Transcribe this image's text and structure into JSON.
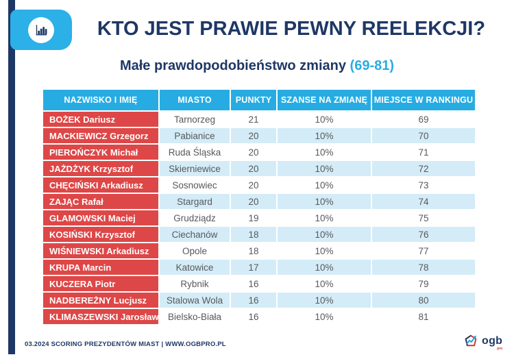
{
  "header": {
    "title": "KTO JEST PRAWIE PEWNY REELEKCJI?",
    "subtitle": "Małe prawdopodobieństwo zmiany",
    "subtitle_range": "(69-81)"
  },
  "table": {
    "columns": [
      "NAZWISKO I IMIĘ",
      "MIASTO",
      "PUNKTY",
      "SZANSE NA ZMIANĘ",
      "MIEJSCE W RANKINGU"
    ],
    "rows": [
      {
        "name": "BOŻEK Dariusz",
        "city": "Tarnorzeg",
        "points": "21",
        "chance": "10%",
        "rank": "69"
      },
      {
        "name": "MACKIEWICZ Grzegorz",
        "city": "Pabianice",
        "points": "20",
        "chance": "10%",
        "rank": "70"
      },
      {
        "name": "PIEROŃCZYK Michał",
        "city": "Ruda Śląska",
        "points": "20",
        "chance": "10%",
        "rank": "71"
      },
      {
        "name": "JAŻDŻYK Krzysztof",
        "city": "Skierniewice",
        "points": "20",
        "chance": "10%",
        "rank": "72"
      },
      {
        "name": "CHĘCIŃSKI Arkadiusz",
        "city": "Sosnowiec",
        "points": "20",
        "chance": "10%",
        "rank": "73"
      },
      {
        "name": "ZAJĄC Rafał",
        "city": "Stargard",
        "points": "20",
        "chance": "10%",
        "rank": "74"
      },
      {
        "name": "GLAMOWSKI Maciej",
        "city": "Grudziądz",
        "points": "19",
        "chance": "10%",
        "rank": "75"
      },
      {
        "name": "KOSIŃSKI Krzysztof",
        "city": "Ciechanów",
        "points": "18",
        "chance": "10%",
        "rank": "76"
      },
      {
        "name": "WIŚNIEWSKI Arkadiusz",
        "city": "Opole",
        "points": "18",
        "chance": "10%",
        "rank": "77"
      },
      {
        "name": "KRUPA Marcin",
        "city": "Katowice",
        "points": "17",
        "chance": "10%",
        "rank": "78"
      },
      {
        "name": "KUCZERA Piotr",
        "city": "Rybnik",
        "points": "16",
        "chance": "10%",
        "rank": "79"
      },
      {
        "name": "NADBEREŻNY Lucjusz",
        "city": "Stalowa Wola",
        "points": "16",
        "chance": "10%",
        "rank": "80"
      },
      {
        "name": "KLIMASZEWSKI Jarosław",
        "city": "Bielsko-Biała",
        "points": "16",
        "chance": "10%",
        "rank": "81"
      }
    ]
  },
  "footer": {
    "text": "03.2024 SCORING PREZYDENTÓW MIAST | WWW.OGBPRO.PL"
  },
  "logo": {
    "text": "ogb",
    "sub": "pro"
  },
  "colors": {
    "navy": "#1E3765",
    "cyan": "#26ACE2",
    "red": "#DE4747",
    "light_blue_row": "#D3ECF7"
  },
  "chart_data": {
    "type": "table",
    "title": "KTO JEST PRAWIE PEWNY REELEKCJI?",
    "subtitle": "Małe prawdopodobieństwo zmiany (69-81)",
    "columns": [
      "NAZWISKO I IMIĘ",
      "MIASTO",
      "PUNKTY",
      "SZANSE NA ZMIANĘ",
      "MIEJSCE W RANKINGU"
    ],
    "rows": [
      [
        "BOŻEK Dariusz",
        "Tarnorzeg",
        21,
        "10%",
        69
      ],
      [
        "MACKIEWICZ Grzegorz",
        "Pabianice",
        20,
        "10%",
        70
      ],
      [
        "PIEROŃCZYK Michał",
        "Ruda Śląska",
        20,
        "10%",
        71
      ],
      [
        "JAŻDŻYK Krzysztof",
        "Skierniewice",
        20,
        "10%",
        72
      ],
      [
        "CHĘCIŃSKI Arkadiusz",
        "Sosnowiec",
        20,
        "10%",
        73
      ],
      [
        "ZAJĄC Rafał",
        "Stargard",
        20,
        "10%",
        74
      ],
      [
        "GLAMOWSKI Maciej",
        "Grudziądz",
        19,
        "10%",
        75
      ],
      [
        "KOSIŃSKI Krzysztof",
        "Ciechanów",
        18,
        "10%",
        76
      ],
      [
        "WIŚNIEWSKI Arkadiusz",
        "Opole",
        18,
        "10%",
        77
      ],
      [
        "KRUPA Marcin",
        "Katowice",
        17,
        "10%",
        78
      ],
      [
        "KUCZERA Piotr",
        "Rybnik",
        16,
        "10%",
        79
      ],
      [
        "NADBEREŻNY Lucjusz",
        "Stalowa Wola",
        16,
        "10%",
        80
      ],
      [
        "KLIMASZEWSKI Jarosław",
        "Bielsko-Biała",
        16,
        "10%",
        81
      ]
    ]
  }
}
